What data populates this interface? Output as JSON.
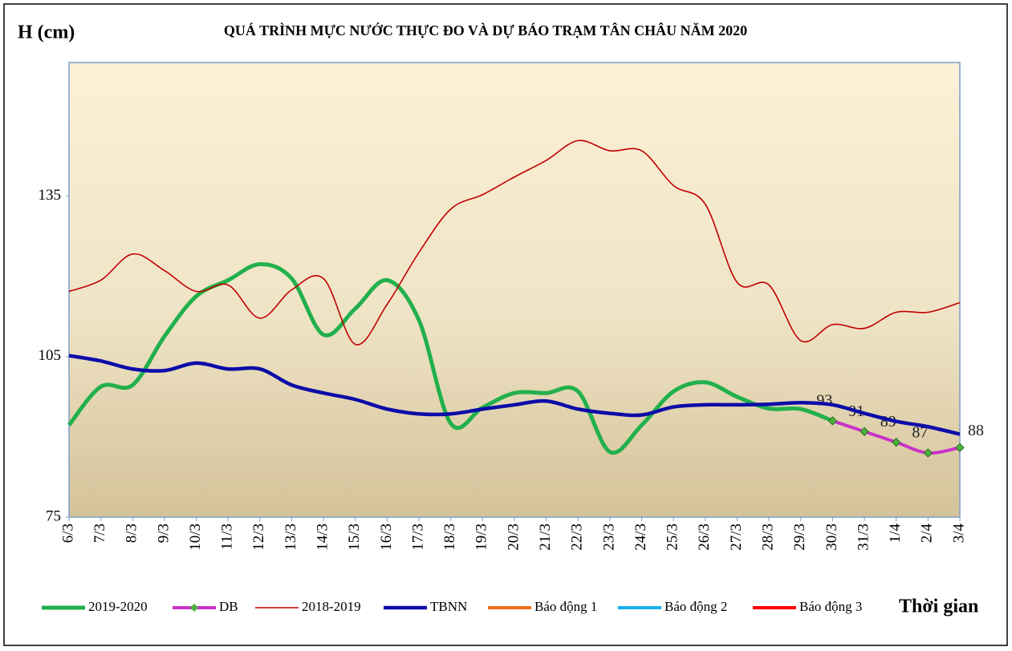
{
  "chart_data": {
    "type": "line",
    "title": "QUÁ TRÌNH MỰC NƯỚC THỰC ĐO VÀ DỰ BÁO TRẠM TÂN CHÂU NĂM 2020",
    "y_label": "H (cm)",
    "x_label": "Thời gian",
    "categories": [
      "6/3",
      "7/3",
      "8/3",
      "9/3",
      "10/3",
      "11/3",
      "12/3",
      "13/3",
      "14/3",
      "15/3",
      "16/3",
      "17/3",
      "18/3",
      "19/3",
      "20/3",
      "21/3",
      "22/3",
      "23/3",
      "24/3",
      "25/3",
      "26/3",
      "27/3",
      "28/3",
      "29/3",
      "30/3",
      "31/3",
      "1/4",
      "2/4",
      "3/4"
    ],
    "ylim": [
      75,
      160
    ],
    "yticks": [
      75,
      105,
      135
    ],
    "series": [
      {
        "name": "2019-2020",
        "color": "#22b04c",
        "values": [
          92.2,
          99.4,
          99.7,
          108.8,
          116.3,
          119.3,
          122.3,
          119.6,
          109.1,
          114,
          119.3,
          111.8,
          92.5,
          95.5,
          98.2,
          98.2,
          98.5,
          87.2,
          92.2,
          98.5,
          100.2,
          97.5,
          95.3,
          95.2,
          93,
          null,
          null,
          null,
          null
        ]
      },
      {
        "name": "DB",
        "color": "#c832c8",
        "values": [
          null,
          null,
          null,
          null,
          null,
          null,
          null,
          null,
          null,
          null,
          null,
          null,
          null,
          null,
          null,
          null,
          null,
          null,
          null,
          null,
          null,
          null,
          null,
          null,
          93,
          91,
          89,
          87,
          88
        ]
      },
      {
        "name": "2018-2019",
        "color": "#c00000",
        "values": [
          117.2,
          119.3,
          124.2,
          121.1,
          117.2,
          118.4,
          112.2,
          117.5,
          119.6,
          107.3,
          114.8,
          124.5,
          132.6,
          135.3,
          138.6,
          141.7,
          145.4,
          143.5,
          143.5,
          137,
          133.5,
          118.9,
          118.4,
          108,
          111,
          110.3,
          113.3,
          113.3,
          115.1
        ]
      },
      {
        "name": "TBNN",
        "color": "#0c0ca8",
        "values": [
          105.2,
          104.2,
          102.7,
          102.4,
          103.8,
          102.7,
          102.7,
          99.7,
          98.2,
          97,
          95.2,
          94.3,
          94.3,
          95.2,
          96,
          96.7,
          95.2,
          94.4,
          94.1,
          95.6,
          96,
          96,
          96.1,
          96.4,
          96,
          94.4,
          92.9,
          91.9,
          90.5
        ]
      },
      {
        "name": "Báo động 1",
        "color": "#f07018",
        "values": [
          null,
          null,
          null,
          null,
          null,
          null,
          null,
          null,
          null,
          null,
          null,
          null,
          null,
          null,
          null,
          null,
          null,
          null,
          null,
          null,
          null,
          null,
          null,
          null,
          null,
          null,
          null,
          null,
          null
        ]
      },
      {
        "name": "Báo động 2",
        "color": "#18b0f0",
        "values": [
          null,
          null,
          null,
          null,
          null,
          null,
          null,
          null,
          null,
          null,
          null,
          null,
          null,
          null,
          null,
          null,
          null,
          null,
          null,
          null,
          null,
          null,
          null,
          null,
          null,
          null,
          null,
          null,
          null
        ]
      },
      {
        "name": "Báo động 3",
        "color": "#ff0000",
        "values": [
          null,
          null,
          null,
          null,
          null,
          null,
          null,
          null,
          null,
          null,
          null,
          null,
          null,
          null,
          null,
          null,
          null,
          null,
          null,
          null,
          null,
          null,
          null,
          null,
          null,
          null,
          null,
          null,
          null
        ]
      }
    ]
  }
}
